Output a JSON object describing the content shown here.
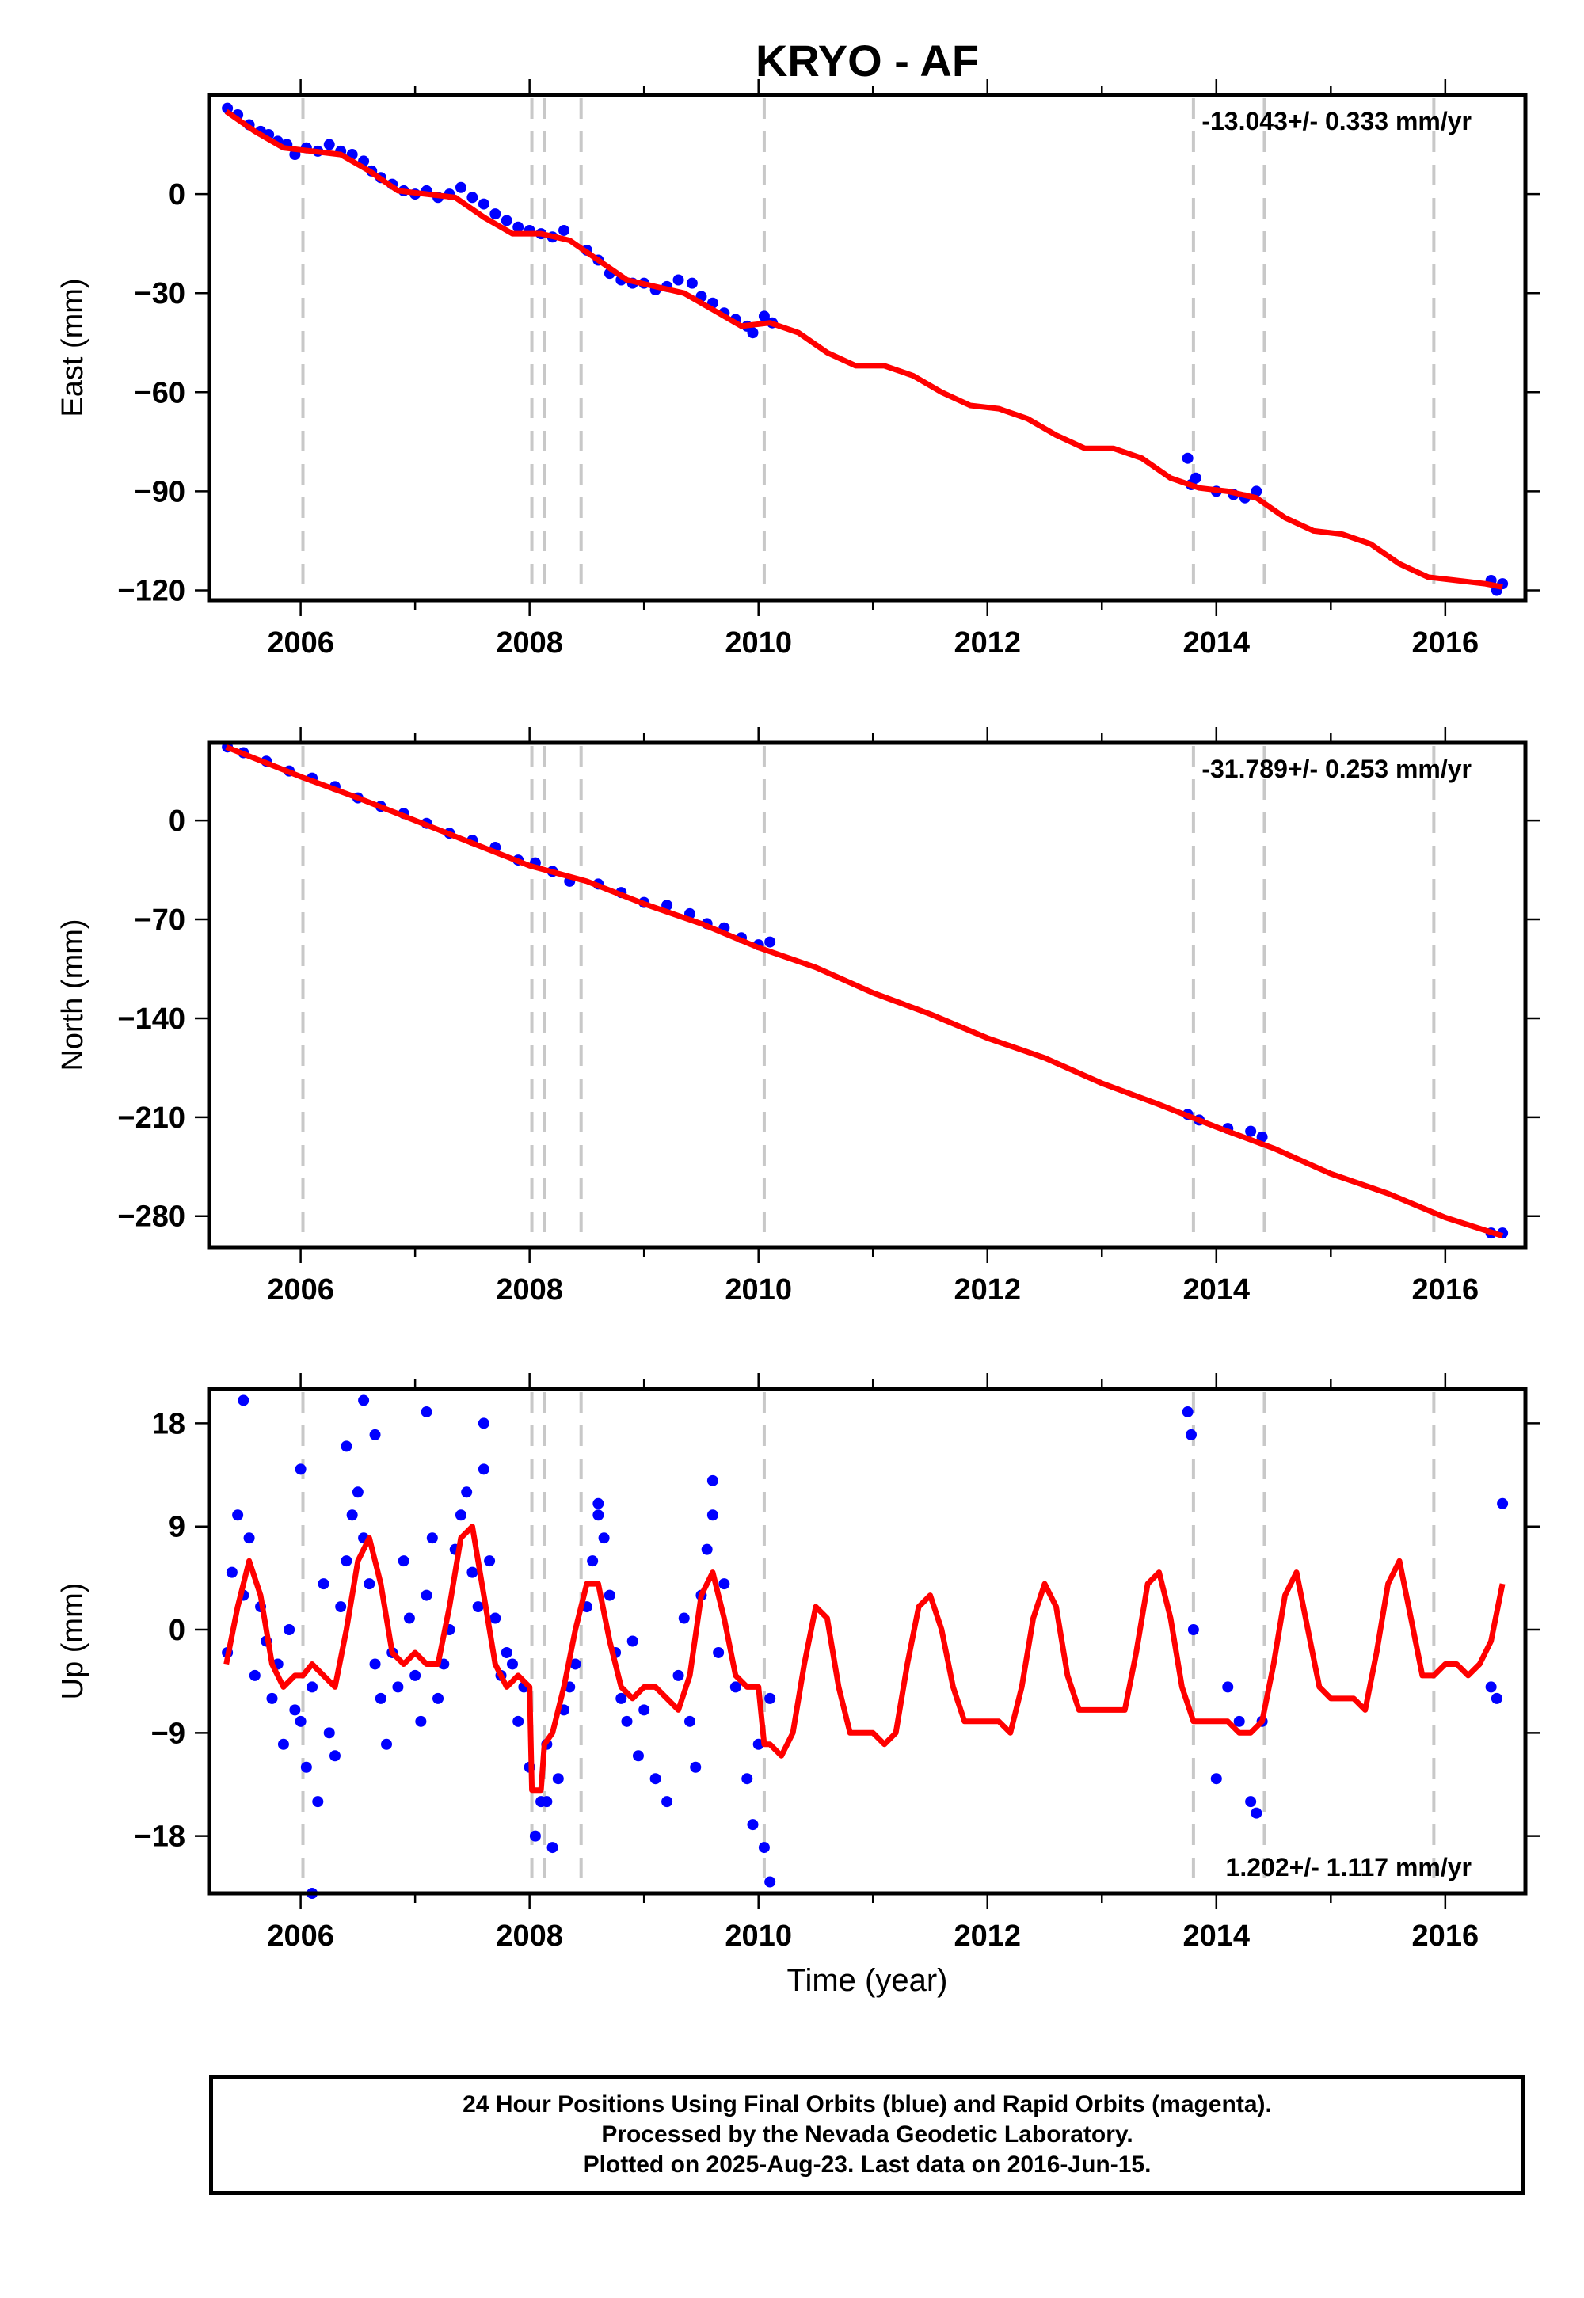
{
  "title": "KRYO - AF",
  "xlabel": "Time (year)",
  "footer": {
    "line1": "24 Hour Positions Using Final Orbits (blue) and Rapid Orbits (magenta).",
    "line2": "Processed by the Nevada Geodetic Laboratory.",
    "line3": "Plotted on 2025-Aug-23. Last data on 2016-Jun-15."
  },
  "colors": {
    "data_points": "#0000ff",
    "model_line": "#ff0000",
    "event_lines": "#c8c8c8"
  },
  "chart_data": [
    {
      "type": "scatter",
      "component": "east",
      "ylabel": "East (mm)",
      "rate_label": "-13.043+/- 0.333 mm/yr",
      "rate_position": "top-right",
      "xlim": [
        2005.2,
        2016.7
      ],
      "ylim": [
        -123,
        30
      ],
      "xticks": [
        2006,
        2008,
        2010,
        2012,
        2014,
        2016
      ],
      "xtick_labels": [
        "2006",
        "2008",
        "2010",
        "2012",
        "2014",
        "2016"
      ],
      "yticks": [
        0,
        -30,
        -60,
        -90,
        -120
      ],
      "ytick_labels": [
        "0",
        "−30",
        "−60",
        "−90",
        "−120"
      ],
      "event_lines": [
        2006.02,
        2008.02,
        2008.13,
        2008.45,
        2010.05,
        2013.8,
        2014.42,
        2015.9
      ],
      "model": {
        "x": [
          2005.35,
          2005.6,
          2005.85,
          2006.1,
          2006.35,
          2006.6,
          2006.85,
          2007.1,
          2007.35,
          2007.6,
          2007.85,
          2008.1,
          2008.35,
          2008.6,
          2008.85,
          2009.1,
          2009.35,
          2009.6,
          2009.85,
          2010.1,
          2010.35,
          2010.6,
          2010.85,
          2011.1,
          2011.35,
          2011.6,
          2011.85,
          2012.1,
          2012.35,
          2012.6,
          2012.85,
          2013.1,
          2013.35,
          2013.6,
          2013.85,
          2014.1,
          2014.35,
          2014.6,
          2014.85,
          2015.1,
          2015.35,
          2015.6,
          2015.85,
          2016.1,
          2016.35,
          2016.5
        ],
        "y": [
          25,
          19,
          14,
          13,
          12,
          7,
          1,
          0,
          -1,
          -7,
          -12,
          -12,
          -14,
          -20,
          -26,
          -28,
          -30,
          -35,
          -40,
          -39,
          -42,
          -48,
          -52,
          -52,
          -55,
          -60,
          -64,
          -65,
          -68,
          -73,
          -77,
          -77,
          -80,
          -86,
          -89,
          -90,
          -92,
          -98,
          -102,
          -103,
          -106,
          -112,
          -116,
          -117,
          -118,
          -119
        ]
      },
      "points": {
        "x": [
          2005.36,
          2005.45,
          2005.55,
          2005.65,
          2005.72,
          2005.8,
          2005.88,
          2005.95,
          2006.05,
          2006.15,
          2006.25,
          2006.35,
          2006.45,
          2006.55,
          2006.62,
          2006.7,
          2006.8,
          2006.9,
          2007.0,
          2007.1,
          2007.2,
          2007.3,
          2007.4,
          2007.5,
          2007.6,
          2007.7,
          2007.8,
          2007.9,
          2008.0,
          2008.1,
          2008.2,
          2008.3,
          2008.5,
          2008.6,
          2008.7,
          2008.8,
          2008.9,
          2009.0,
          2009.1,
          2009.2,
          2009.3,
          2009.42,
          2009.5,
          2009.6,
          2009.7,
          2009.8,
          2009.9,
          2009.95,
          2010.05,
          2010.12,
          2013.75,
          2013.78,
          2013.82,
          2014.0,
          2014.15,
          2014.25,
          2014.35,
          2016.4,
          2016.45,
          2016.5
        ],
        "y": [
          26,
          24,
          21,
          19,
          18,
          16,
          15,
          12,
          14,
          13,
          15,
          13,
          12,
          10,
          7,
          5,
          3,
          1,
          0,
          1,
          -1,
          0,
          2,
          -1,
          -3,
          -6,
          -8,
          -10,
          -11,
          -12,
          -13,
          -11,
          -17,
          -20,
          -24,
          -26,
          -27,
          -27,
          -29,
          -28,
          -26,
          -27,
          -31,
          -33,
          -36,
          -38,
          -40,
          -42,
          -37,
          -39,
          -80,
          -88,
          -86,
          -90,
          -91,
          -92,
          -90,
          -117,
          -120,
          -118
        ]
      }
    },
    {
      "type": "scatter",
      "component": "north",
      "ylabel": "North (mm)",
      "rate_label": "-31.789+/- 0.253 mm/yr",
      "rate_position": "top-right",
      "xlim": [
        2005.2,
        2016.7
      ],
      "ylim": [
        -302,
        55
      ],
      "xticks": [
        2006,
        2008,
        2010,
        2012,
        2014,
        2016
      ],
      "xtick_labels": [
        "2006",
        "2008",
        "2010",
        "2012",
        "2014",
        "2016"
      ],
      "yticks": [
        0,
        -70,
        -140,
        -210,
        -280
      ],
      "ytick_labels": [
        "0",
        "−70",
        "−140",
        "−210",
        "−280"
      ],
      "event_lines": [
        2006.02,
        2008.02,
        2008.13,
        2008.45,
        2010.05,
        2013.8,
        2014.42,
        2015.9
      ],
      "model": {
        "x": [
          2005.35,
          2006.0,
          2006.5,
          2007.0,
          2007.5,
          2008.0,
          2008.5,
          2009.0,
          2009.5,
          2010.0,
          2010.5,
          2011.0,
          2011.5,
          2012.0,
          2012.5,
          2013.0,
          2013.5,
          2014.0,
          2014.5,
          2015.0,
          2015.5,
          2016.0,
          2016.5
        ],
        "y": [
          52,
          31,
          16,
          0,
          -16,
          -32,
          -43,
          -59,
          -73,
          -90,
          -104,
          -122,
          -137,
          -154,
          -168,
          -186,
          -201,
          -217,
          -232,
          -250,
          -264,
          -281,
          -294
        ]
      },
      "points": {
        "x": [
          2005.36,
          2005.5,
          2005.7,
          2005.9,
          2006.1,
          2006.3,
          2006.5,
          2006.7,
          2006.9,
          2007.1,
          2007.3,
          2007.5,
          2007.7,
          2007.9,
          2008.05,
          2008.2,
          2008.35,
          2008.6,
          2008.8,
          2009.0,
          2009.2,
          2009.4,
          2009.55,
          2009.7,
          2009.85,
          2010.0,
          2010.1,
          2013.75,
          2013.85,
          2014.1,
          2014.3,
          2014.4,
          2016.4,
          2016.5
        ],
        "y": [
          52,
          48,
          42,
          35,
          30,
          24,
          16,
          10,
          5,
          -2,
          -9,
          -14,
          -19,
          -28,
          -30,
          -36,
          -43,
          -45,
          -51,
          -58,
          -60,
          -66,
          -73,
          -76,
          -83,
          -88,
          -86,
          -208,
          -212,
          -218,
          -220,
          -224,
          -292,
          -292
        ]
      }
    },
    {
      "type": "scatter",
      "component": "up",
      "ylabel": "Up (mm)",
      "rate_label": "1.202+/- 1.117 mm/yr",
      "rate_position": "bottom-right",
      "xlim": [
        2005.2,
        2016.7
      ],
      "ylim": [
        -23,
        21
      ],
      "xticks": [
        2006,
        2008,
        2010,
        2012,
        2014,
        2016
      ],
      "xtick_labels": [
        "2006",
        "2008",
        "2010",
        "2012",
        "2014",
        "2016"
      ],
      "yticks": [
        18,
        9,
        0,
        -9,
        -18
      ],
      "ytick_labels": [
        "18",
        "9",
        "0",
        "−9",
        "−18"
      ],
      "event_lines": [
        2006.02,
        2008.02,
        2008.13,
        2008.45,
        2010.05,
        2013.8,
        2014.42,
        2015.9
      ],
      "model": {
        "x": [
          2005.35,
          2005.45,
          2005.55,
          2005.65,
          2005.75,
          2005.85,
          2005.95,
          2006.02,
          2006.1,
          2006.2,
          2006.3,
          2006.4,
          2006.5,
          2006.6,
          2006.7,
          2006.8,
          2006.9,
          2007.0,
          2007.1,
          2007.2,
          2007.3,
          2007.4,
          2007.5,
          2007.6,
          2007.7,
          2007.8,
          2007.9,
          2008.0,
          2008.02,
          2008.1,
          2008.13,
          2008.2,
          2008.3,
          2008.4,
          2008.45,
          2008.5,
          2008.6,
          2008.7,
          2008.8,
          2008.9,
          2009.0,
          2009.1,
          2009.2,
          2009.3,
          2009.4,
          2009.5,
          2009.6,
          2009.7,
          2009.8,
          2009.9,
          2010.0,
          2010.05,
          2010.1,
          2010.2,
          2010.3,
          2010.4,
          2010.5,
          2010.6,
          2010.7,
          2010.8,
          2010.9,
          2011.0,
          2011.1,
          2011.2,
          2011.3,
          2011.4,
          2011.5,
          2011.6,
          2011.7,
          2011.8,
          2011.9,
          2012.0,
          2012.1,
          2012.2,
          2012.3,
          2012.4,
          2012.5,
          2012.6,
          2012.7,
          2012.8,
          2012.9,
          2013.0,
          2013.1,
          2013.2,
          2013.3,
          2013.4,
          2013.5,
          2013.6,
          2013.7,
          2013.8,
          2013.9,
          2014.0,
          2014.1,
          2014.2,
          2014.3,
          2014.4,
          2014.5,
          2014.6,
          2014.7,
          2014.8,
          2014.9,
          2015.0,
          2015.1,
          2015.2,
          2015.3,
          2015.4,
          2015.5,
          2015.6,
          2015.7,
          2015.8,
          2015.9,
          2016.0,
          2016.1,
          2016.2,
          2016.3,
          2016.4,
          2016.5
        ],
        "y": [
          -3,
          2,
          6,
          3,
          -3,
          -5,
          -4,
          -4,
          -3,
          -4,
          -5,
          0,
          6,
          8,
          4,
          -2,
          -3,
          -2,
          -3,
          -3,
          2,
          8,
          9,
          3,
          -3,
          -5,
          -4,
          -5,
          -14,
          -14,
          -10,
          -9,
          -5,
          0,
          2,
          4,
          4,
          -1,
          -5,
          -6,
          -5,
          -5,
          -6,
          -7,
          -4,
          3,
          5,
          1,
          -4,
          -5,
          -5,
          -10,
          -10,
          -11,
          -9,
          -3,
          2,
          1,
          -5,
          -9,
          -9,
          -9,
          -10,
          -9,
          -3,
          2,
          3,
          0,
          -5,
          -8,
          -8,
          -8,
          -8,
          -9,
          -5,
          1,
          4,
          2,
          -4,
          -7,
          -7,
          -7,
          -7,
          -7,
          -2,
          4,
          5,
          1,
          -5,
          -8,
          -8,
          -8,
          -8,
          -9,
          -9,
          -8,
          -3,
          3,
          5,
          0,
          -5,
          -6,
          -6,
          -6,
          -7,
          -2,
          4,
          6,
          1,
          -4,
          -4,
          -3,
          -3,
          -4,
          -3,
          -1,
          4
        ]
      },
      "points": {
        "x": [
          2005.36,
          2005.4,
          2005.45,
          2005.5,
          2005.55,
          2005.6,
          2005.65,
          2005.7,
          2005.75,
          2005.8,
          2005.85,
          2005.9,
          2005.95,
          2006.0,
          2006.05,
          2006.1,
          2006.15,
          2006.2,
          2006.25,
          2006.3,
          2006.35,
          2006.4,
          2006.45,
          2006.5,
          2006.55,
          2006.6,
          2006.65,
          2006.7,
          2006.75,
          2006.8,
          2006.85,
          2006.9,
          2006.95,
          2007.0,
          2007.05,
          2007.1,
          2007.15,
          2007.2,
          2007.25,
          2007.3,
          2007.35,
          2007.4,
          2007.45,
          2007.5,
          2007.55,
          2007.6,
          2007.65,
          2007.7,
          2007.75,
          2007.8,
          2007.85,
          2007.9,
          2007.95,
          2008.0,
          2008.05,
          2008.1,
          2008.15,
          2008.2,
          2008.25,
          2008.3,
          2008.35,
          2008.4,
          2008.5,
          2008.55,
          2008.6,
          2008.65,
          2008.7,
          2008.75,
          2008.8,
          2008.85,
          2008.9,
          2008.95,
          2009.0,
          2009.1,
          2009.2,
          2009.3,
          2009.35,
          2009.4,
          2009.45,
          2009.5,
          2009.55,
          2009.6,
          2009.65,
          2009.7,
          2009.8,
          2009.9,
          2009.95,
          2010.0,
          2010.05,
          2010.1,
          2005.5,
          2006.0,
          2006.4,
          2006.55,
          2006.65,
          2007.1,
          2007.6,
          2008.15,
          2008.6,
          2009.6,
          2010.1,
          2006.1,
          2013.75,
          2013.78,
          2013.8,
          2014.0,
          2014.1,
          2014.2,
          2014.3,
          2014.35,
          2014.4,
          2016.4,
          2016.45,
          2016.5
        ],
        "y": [
          -2,
          5,
          10,
          3,
          8,
          -4,
          2,
          -1,
          -6,
          -3,
          -10,
          0,
          -7,
          -8,
          -12,
          -5,
          -15,
          4,
          -9,
          -11,
          2,
          6,
          10,
          12,
          8,
          4,
          -3,
          -6,
          -10,
          -2,
          -5,
          6,
          1,
          -4,
          -8,
          3,
          8,
          -6,
          -3,
          0,
          7,
          10,
          12,
          5,
          2,
          14,
          6,
          1,
          -4,
          -2,
          -3,
          -8,
          -5,
          -12,
          -18,
          -15,
          -10,
          -19,
          -13,
          -7,
          -5,
          -3,
          2,
          6,
          10,
          8,
          3,
          -2,
          -6,
          -8,
          -1,
          -11,
          -7,
          -13,
          -15,
          -4,
          1,
          -8,
          -12,
          3,
          7,
          10,
          -2,
          4,
          -5,
          -13,
          -17,
          -10,
          -19,
          -6,
          20,
          14,
          16,
          20,
          17,
          19,
          18,
          -15,
          11,
          13,
          -22,
          -23,
          19,
          17,
          0,
          -13,
          -5,
          -8,
          -15,
          -16,
          -8,
          -5,
          -6,
          11
        ]
      }
    }
  ]
}
